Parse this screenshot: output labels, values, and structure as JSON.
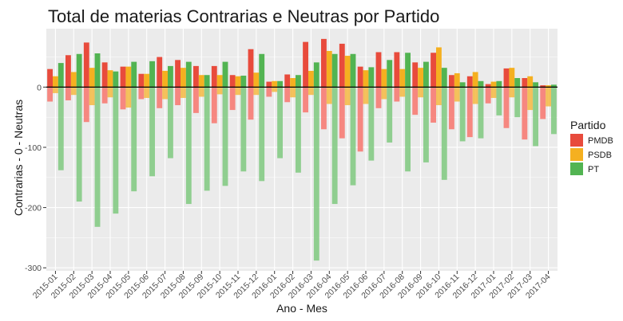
{
  "chart_data": {
    "type": "bar",
    "title": "Total de materias Contrarias e Neutras por Partido",
    "xlabel": "Ano - Mes",
    "ylabel": "Contrarias - 0 - Neutras",
    "ylim": [
      -305,
      97
    ],
    "yticks": [
      0,
      -100,
      -200,
      -300
    ],
    "grid": true,
    "legend_position": "right",
    "legend_title": "Partido",
    "categories": [
      "2015-01",
      "2015-02",
      "2015-03",
      "2015-04",
      "2015-05",
      "2015-06",
      "2015-07",
      "2015-08",
      "2015-09",
      "2015-10",
      "2015-11",
      "2015-12",
      "2016-01",
      "2016-02",
      "2016-03",
      "2016-04",
      "2016-05",
      "2016-06",
      "2016-07",
      "2016-08",
      "2016-09",
      "2016-10",
      "2016-11",
      "2016-12",
      "2017-01",
      "2017-02",
      "2017-03",
      "2017-04"
    ],
    "colors": {
      "PMDB": "#f8766d",
      "PSDB": "#f5b942",
      "PT": "#7fc97f",
      "PMDB_solid": "#e84b3c",
      "PSDB_solid": "#f5b020",
      "PT_solid": "#52b452",
      "panel": "#ebebeb"
    },
    "series": [
      {
        "name": "PMDB",
        "contrarias": [
          30,
          53,
          74,
          41,
          34,
          22,
          50,
          45,
          35,
          35,
          20,
          63,
          9,
          21,
          75,
          80,
          72,
          34,
          58,
          58,
          41,
          57,
          20,
          18,
          5,
          31,
          15,
          3
        ],
        "neutras": [
          -24,
          -22,
          -58,
          -27,
          -37,
          -20,
          -35,
          -30,
          -43,
          -60,
          -38,
          -54,
          -16,
          -25,
          -42,
          -70,
          -85,
          -107,
          -35,
          -24,
          -46,
          -59,
          -70,
          -83,
          -27,
          -68,
          -87,
          -53
        ]
      },
      {
        "name": "PSDB",
        "contrarias": [
          18,
          25,
          32,
          28,
          34,
          22,
          27,
          32,
          20,
          20,
          18,
          24,
          10,
          15,
          27,
          60,
          52,
          28,
          30,
          30,
          32,
          66,
          23,
          25,
          9,
          32,
          18,
          3
        ],
        "neutras": [
          -10,
          -13,
          -30,
          -17,
          -34,
          -18,
          -20,
          -18,
          -16,
          -12,
          -13,
          -13,
          -8,
          -17,
          -13,
          -28,
          -30,
          -28,
          -20,
          -16,
          -17,
          -30,
          -24,
          -28,
          -18,
          -17,
          -38,
          -32
        ]
      },
      {
        "name": "PT",
        "contrarias": [
          40,
          55,
          56,
          26,
          42,
          43,
          35,
          42,
          20,
          42,
          19,
          55,
          10,
          20,
          41,
          55,
          55,
          33,
          45,
          57,
          42,
          32,
          8,
          10,
          10,
          15,
          8,
          4
        ],
        "neutras": [
          -138,
          -190,
          -232,
          -210,
          -173,
          -148,
          -118,
          -194,
          -172,
          -164,
          -140,
          -156,
          -118,
          -142,
          -288,
          -194,
          -163,
          -122,
          -92,
          -140,
          -125,
          -154,
          -90,
          -85,
          -47,
          -50,
          -98,
          -78
        ]
      }
    ]
  }
}
